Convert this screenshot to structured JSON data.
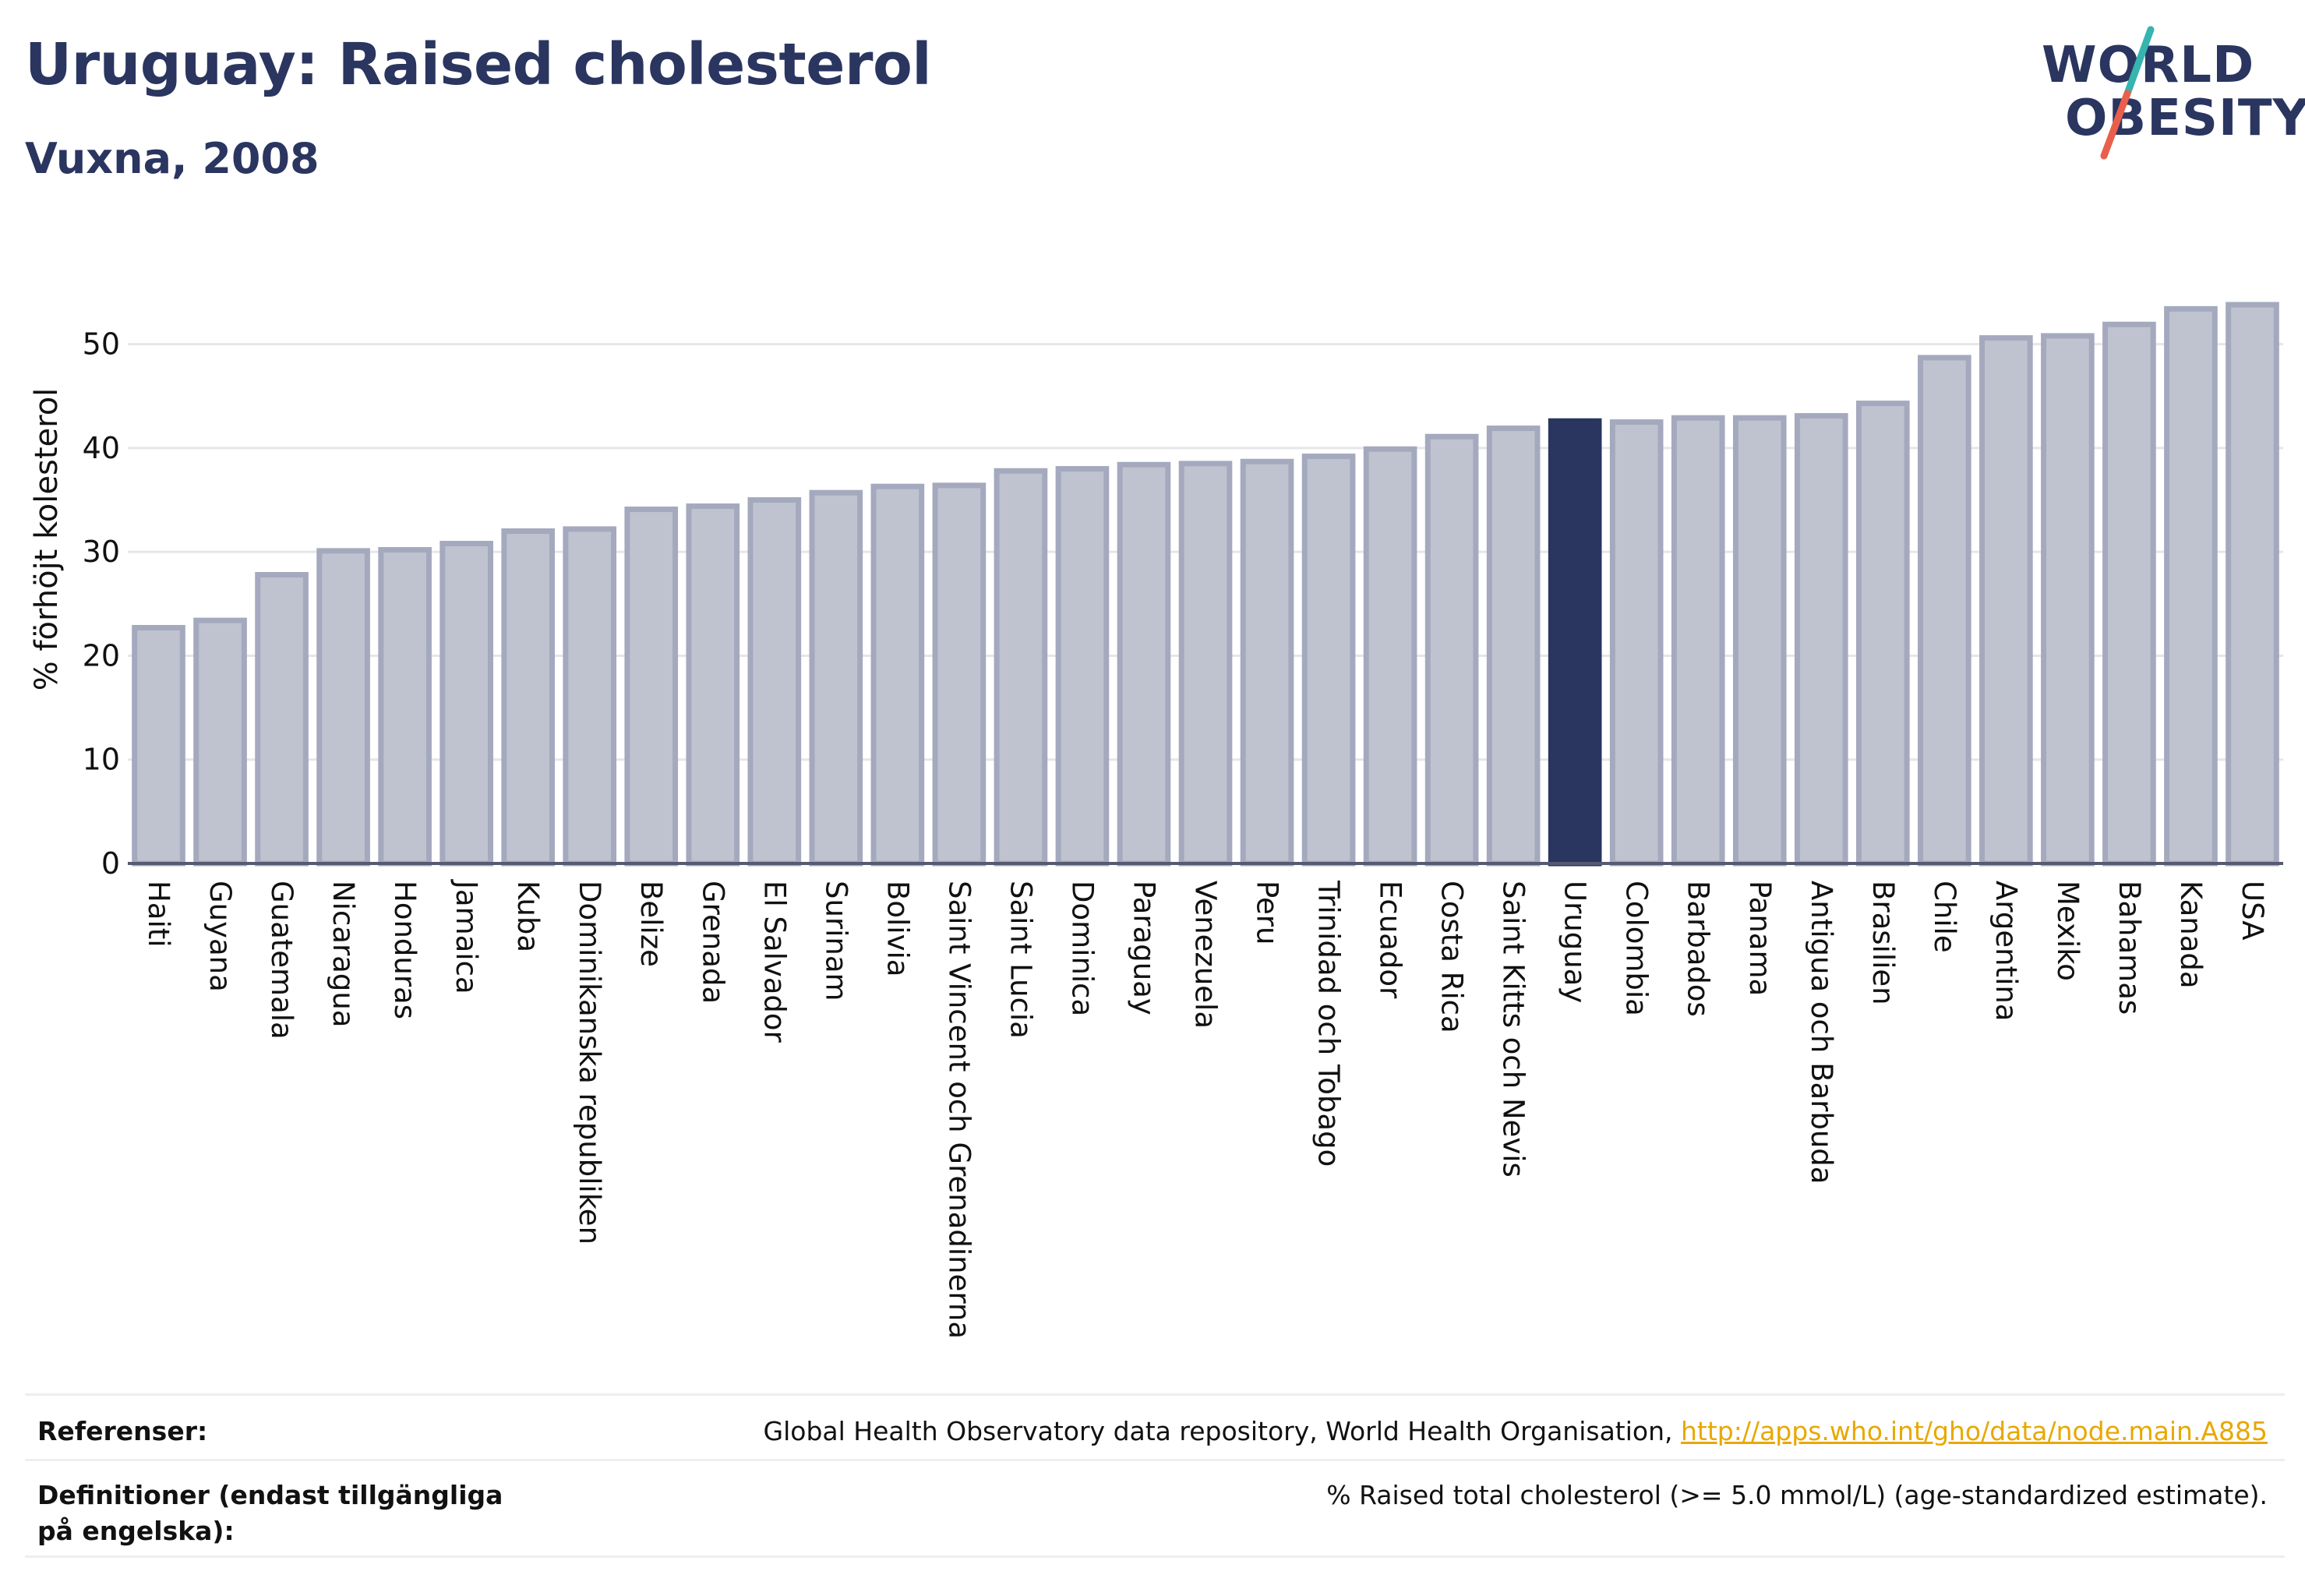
{
  "header": {
    "title": "Uruguay: Raised cholesterol",
    "subtitle": "Vuxna, 2008"
  },
  "logo": {
    "line1": "WORLD",
    "line2": "OBESITY",
    "accent_colors": [
      "#35b4b0",
      "#e8604c"
    ]
  },
  "chart_data": {
    "type": "bar",
    "ylabel": "% förhöjt kolesterol",
    "xlabel": "",
    "ylim": [
      0,
      55
    ],
    "yticks": [
      0,
      10,
      20,
      30,
      40,
      50
    ],
    "grid": true,
    "highlight": "Uruguay",
    "colors": {
      "bar": "#bfc3d0",
      "bar_border": "#a4a9be",
      "highlight": "#2a3560"
    },
    "categories": [
      "Haiti",
      "Guyana",
      "Guatemala",
      "Nicaragua",
      "Honduras",
      "Jamaica",
      "Kuba",
      "Dominikanska republiken",
      "Belize",
      "Grenada",
      "El Salvador",
      "Surinam",
      "Bolivia",
      "Saint Vincent och Grenadinerna",
      "Saint Lucia",
      "Dominica",
      "Paraguay",
      "Venezuela",
      "Peru",
      "Trinidad och Tobago",
      "Ecuador",
      "Costa Rica",
      "Saint Kitts och Nevis",
      "Uruguay",
      "Colombia",
      "Barbados",
      "Panama",
      "Antigua och Barbuda",
      "Brasilien",
      "Chile",
      "Argentina",
      "Mexiko",
      "Bahamas",
      "Kanada",
      "USA"
    ],
    "values": [
      22.7,
      23.4,
      27.8,
      30.1,
      30.2,
      30.8,
      32.0,
      32.2,
      34.1,
      34.4,
      35.0,
      35.7,
      36.3,
      36.4,
      37.8,
      38.0,
      38.4,
      38.5,
      38.7,
      39.2,
      39.9,
      41.1,
      41.9,
      42.6,
      42.5,
      42.9,
      42.9,
      43.1,
      44.3,
      48.7,
      50.6,
      50.8,
      51.9,
      53.4,
      53.8
    ]
  },
  "footer": {
    "references_label": "Referenser:",
    "references_text": "Global Health Observatory data repository, World Health Organisation, ",
    "references_link": "http://apps.who.int/gho/data/node.main.A885",
    "definitions_label": "Definitioner (endast tillgängliga på engelska):",
    "definitions_text": "% Raised total cholesterol (>= 5.0 mmol/L) (age-standardized estimate)."
  }
}
